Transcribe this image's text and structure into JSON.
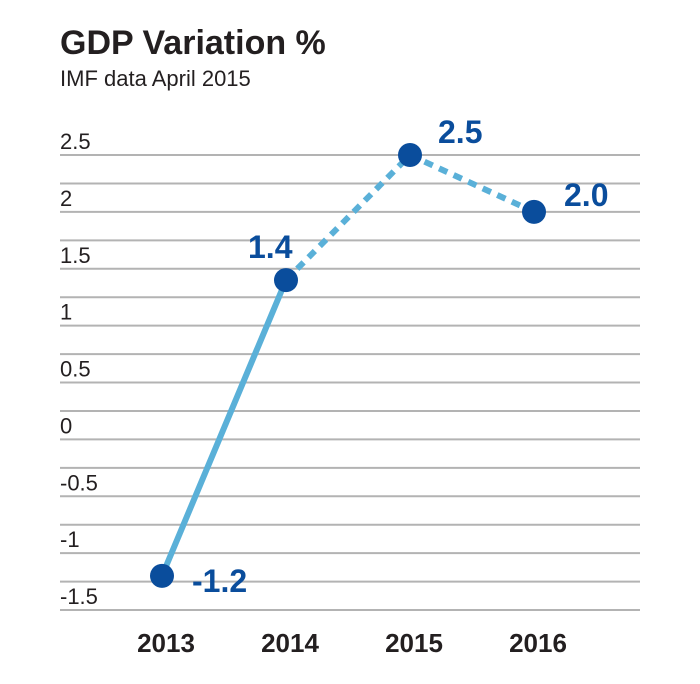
{
  "chart_data": {
    "type": "line",
    "title": "GDP Variation %",
    "subtitle": "IMF data April 2015",
    "categories": [
      "2013",
      "2014",
      "2015",
      "2016"
    ],
    "values": [
      -1.2,
      1.4,
      2.5,
      2.0
    ],
    "data_labels": [
      "-1.2",
      "1.4",
      "2.5",
      "2.0"
    ],
    "actual_points": 2,
    "y_ticks": [
      "2.5",
      "2",
      "1.5",
      "1",
      "0.5",
      "0",
      "-0.5",
      "-1",
      "-1.5"
    ],
    "ylim": [
      -1.5,
      2.5
    ],
    "grid": true,
    "colors": {
      "line": "#5ab0d8",
      "marker": "#0a4d9c",
      "grid": "#b3b3b3",
      "text": "#231f20",
      "label": "#0a4d9c"
    }
  }
}
